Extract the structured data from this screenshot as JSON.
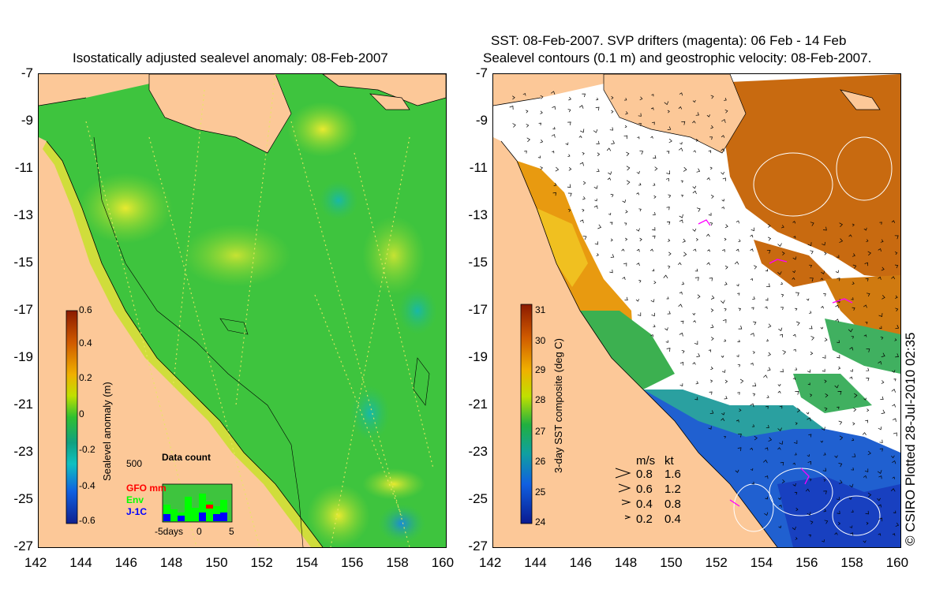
{
  "left_panel": {
    "title": "Isostatically adjusted sealevel anomaly: 08-Feb-2007",
    "colorbar": {
      "label": "Sealevel anomaly (m)",
      "ticks": [
        "0.6",
        "0.4",
        "0.2",
        "0",
        "-0.2",
        "-0.4",
        "-0.6"
      ],
      "colors": [
        "#8b1a00",
        "#d05a00",
        "#f0a000",
        "#f0e000",
        "#a0e000",
        "#20c020",
        "#10a060",
        "#10c0c0",
        "#1070e0",
        "#1020a0"
      ]
    },
    "data_count": {
      "title": "Data count",
      "max_label": "500",
      "series": [
        {
          "name": "GFO mm",
          "color": "#ff0000"
        },
        {
          "name": "Env",
          "color": "#00ff00"
        },
        {
          "name": "J-1C",
          "color": "#0000ff"
        }
      ],
      "x_labels": [
        "-5days",
        "0",
        "5"
      ]
    }
  },
  "right_panel": {
    "title_line1": "SST: 08-Feb-2007. SVP drifters (magenta): 06 Feb - 14 Feb",
    "title_line2": "Sealevel contours (0.1 m) and geostrophic velocity: 08-Feb-2007.",
    "colorbar": {
      "label": "3-day SST composite (deg C)",
      "ticks": [
        "31",
        "30",
        "29",
        "28",
        "27",
        "26",
        "25",
        "24"
      ]
    },
    "velocity_legend": {
      "header_ms": "m/s",
      "header_kt": "kt",
      "rows": [
        {
          "ms": "0.8",
          "kt": "1.6"
        },
        {
          "ms": "0.6",
          "kt": "1.2"
        },
        {
          "ms": "0.4",
          "kt": "0.8"
        },
        {
          "ms": "0.2",
          "kt": "0.4"
        }
      ]
    }
  },
  "axes": {
    "y_ticks": [
      "-7",
      "-9",
      "-11",
      "-13",
      "-15",
      "-17",
      "-19",
      "-21",
      "-23",
      "-25",
      "-27"
    ],
    "x_ticks": [
      "142",
      "144",
      "146",
      "148",
      "150",
      "152",
      "154",
      "156",
      "158",
      "160"
    ]
  },
  "credit": "© CSIRO Plotted 28-Jul-2010 02:35",
  "colors": {
    "land": "#fcc898",
    "ocean_green": "#3cc83c",
    "warm_sst": "#c86a10",
    "cool_sst": "#2060d0"
  }
}
